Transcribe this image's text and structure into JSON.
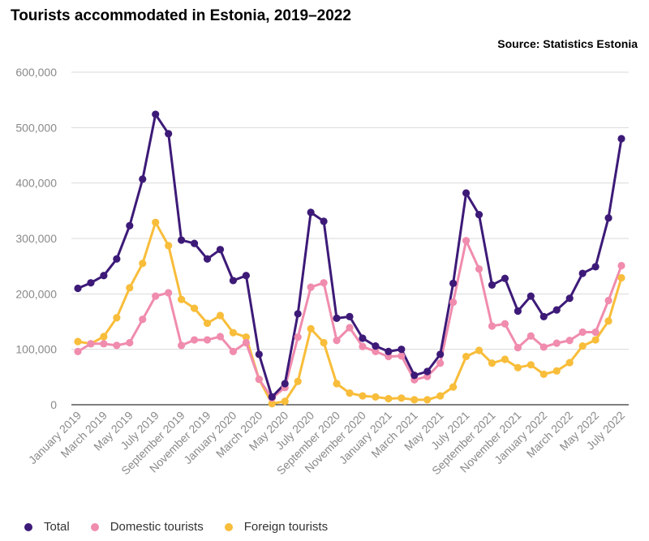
{
  "title": "Tourists accommodated in Estonia, 2019–2022",
  "source": "Source: Statistics Estonia",
  "chart_data": {
    "type": "line",
    "title": "Tourists accommodated in Estonia, 2019–2022",
    "xlabel": "",
    "ylabel": "",
    "ylim": [
      0,
      600000
    ],
    "yticks": [
      0,
      100000,
      200000,
      300000,
      400000,
      500000,
      600000
    ],
    "ytick_labels": [
      "0",
      "100,000",
      "200,000",
      "300,000",
      "400,000",
      "500,000",
      "600,000"
    ],
    "grid": "horizontal",
    "legend_position": "bottom",
    "x": [
      "2019-01",
      "2019-02",
      "2019-03",
      "2019-04",
      "2019-05",
      "2019-06",
      "2019-07",
      "2019-08",
      "2019-09",
      "2019-10",
      "2019-11",
      "2019-12",
      "2020-01",
      "2020-02",
      "2020-03",
      "2020-04",
      "2020-05",
      "2020-06",
      "2020-07",
      "2020-08",
      "2020-09",
      "2020-10",
      "2020-11",
      "2020-12",
      "2021-01",
      "2021-02",
      "2021-03",
      "2021-04",
      "2021-05",
      "2021-06",
      "2021-07",
      "2021-08",
      "2021-09",
      "2021-10",
      "2021-11",
      "2021-12",
      "2022-01",
      "2022-02",
      "2022-03",
      "2022-04",
      "2022-05",
      "2022-06",
      "2022-07"
    ],
    "x_tick_labels": [
      "January 2019",
      "March 2019",
      "May 2019",
      "July 2019",
      "September 2019",
      "November 2019",
      "January 2020",
      "March 2020",
      "May 2020",
      "July 2020",
      "September 2020",
      "November 2020",
      "January 2021",
      "March 2021",
      "May 2021",
      "July 2021",
      "September 2021",
      "November 2021",
      "January 2022",
      "March 2022",
      "May 2022",
      "July 2022"
    ],
    "series": [
      {
        "name": "Total",
        "color": "#3d1a78",
        "values": [
          210000,
          220000,
          233000,
          263000,
          323000,
          407000,
          524000,
          489000,
          297000,
          291000,
          263000,
          280000,
          224000,
          233000,
          91000,
          14000,
          38000,
          164000,
          347000,
          331000,
          156000,
          159000,
          120000,
          106000,
          96000,
          100000,
          53000,
          60000,
          91000,
          219000,
          382000,
          343000,
          216000,
          228000,
          169000,
          196000,
          159000,
          171000,
          192000,
          237000,
          249000,
          337000,
          480000
        ]
      },
      {
        "name": "Domestic tourists",
        "color": "#f08cae",
        "values": [
          96000,
          110000,
          110000,
          107000,
          112000,
          154000,
          196000,
          202000,
          107000,
          117000,
          117000,
          123000,
          96000,
          112000,
          46000,
          12000,
          31000,
          122000,
          212000,
          220000,
          116000,
          139000,
          105000,
          96000,
          87000,
          88000,
          45000,
          51000,
          75000,
          185000,
          296000,
          245000,
          142000,
          146000,
          103000,
          124000,
          104000,
          111000,
          116000,
          131000,
          131000,
          188000,
          251000
        ]
      },
      {
        "name": "Foreign tourists",
        "color": "#f8bd3a",
        "values": [
          114000,
          110000,
          123000,
          157000,
          211000,
          255000,
          329000,
          287000,
          190000,
          174000,
          147000,
          161000,
          130000,
          122000,
          46000,
          2000,
          6000,
          42000,
          137000,
          112000,
          38000,
          21000,
          16000,
          14000,
          11000,
          12000,
          9000,
          9000,
          16000,
          32000,
          87000,
          98000,
          75000,
          82000,
          67000,
          72000,
          55000,
          61000,
          76000,
          106000,
          117000,
          151000,
          229000
        ]
      }
    ]
  }
}
